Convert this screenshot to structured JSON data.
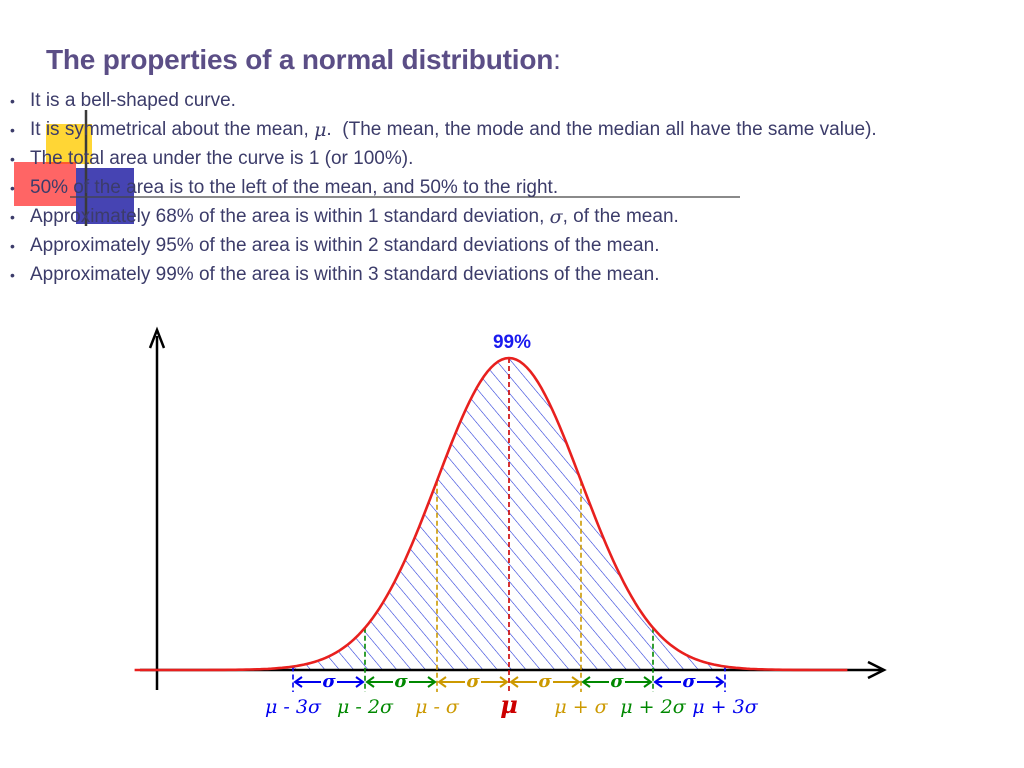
{
  "title": {
    "main": "The properties of a normal distribution",
    "colon": ":"
  },
  "bullets": [
    {
      "text": "It is a bell-shaped curve."
    },
    {
      "pre": "It is symmetrical about the mean, ",
      "sym": "μ",
      "post": ".  (The mean, the mode and the median all have the same value)."
    },
    {
      "text": "The total area under the curve is 1 (or 100%)."
    },
    {
      "text": "50% of the area is to the left of the mean, and 50% to the right."
    },
    {
      "pre": "Approximately 68% of the area is within 1 standard deviation, ",
      "sym": "σ",
      "post": ", of the mean."
    },
    {
      "text": "Approximately 95% of the area is within 2 standard deviations of the mean."
    },
    {
      "text": "Approximately 99% of the area is within 3 standard deviations of the mean."
    }
  ],
  "chart_data": {
    "type": "area",
    "distribution": "normal",
    "mean": 0,
    "sd": 1,
    "xlim": [
      -5.2,
      4.7
    ],
    "shaded_range": [
      -3,
      3
    ],
    "shaded_percent_label": "99%",
    "sd_markers": [
      {
        "x": -3,
        "color": "#0000ee"
      },
      {
        "x": -2,
        "color": "#008800"
      },
      {
        "x": -1,
        "color": "#cc9900"
      },
      {
        "x": 0,
        "color": "#cc0000"
      },
      {
        "x": 1,
        "color": "#cc9900"
      },
      {
        "x": 2,
        "color": "#008800"
      },
      {
        "x": 3,
        "color": "#0000ee"
      }
    ],
    "sigma_arrows": [
      {
        "from": -3,
        "to": -2,
        "label": "σ",
        "color": "#0000ee"
      },
      {
        "from": -2,
        "to": -1,
        "label": "σ",
        "color": "#008800"
      },
      {
        "from": -1,
        "to": 0,
        "label": "σ",
        "color": "#cc9900"
      },
      {
        "from": 0,
        "to": 1,
        "label": "σ",
        "color": "#cc9900"
      },
      {
        "from": 1,
        "to": 2,
        "label": "σ",
        "color": "#008800"
      },
      {
        "from": 2,
        "to": 3,
        "label": "σ",
        "color": "#0000ee"
      }
    ],
    "tick_labels": [
      {
        "x": -3,
        "text": "μ - 3σ",
        "color": "#0000ee"
      },
      {
        "x": -2,
        "text": "μ - 2σ",
        "color": "#008800"
      },
      {
        "x": -1,
        "text": "μ - σ",
        "color": "#cc9900"
      },
      {
        "x": 0,
        "text": "μ",
        "color": "#cc0000",
        "bold": true
      },
      {
        "x": 1,
        "text": "μ + σ",
        "color": "#cc9900"
      },
      {
        "x": 2,
        "text": "μ + 2σ",
        "color": "#008800"
      },
      {
        "x": 3,
        "text": "μ + 3σ",
        "color": "#0000ee"
      }
    ],
    "curve_color": "#e8201e",
    "hatch_color": "#1c2fd8",
    "axis_color": "#000000"
  }
}
